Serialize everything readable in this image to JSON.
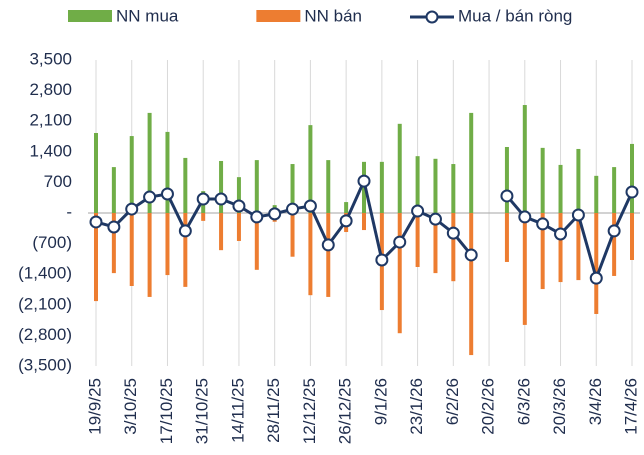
{
  "chart_data": {
    "type": "bar_line",
    "categories": [
      "19/9/25",
      null,
      "3/10/25",
      null,
      "17/10/25",
      null,
      "31/10/25",
      null,
      "14/11/25",
      null,
      "28/11/25",
      null,
      "12/12/25",
      null,
      "26/12/25",
      null,
      "9/1/26",
      null,
      "23/1/26",
      null,
      "6/2/26",
      null,
      "20/2/26",
      null,
      "6/3/26",
      null,
      "20/3/26",
      null,
      "3/4/26",
      null,
      "17/4/26"
    ],
    "series": [
      {
        "name": "NN mua",
        "type": "bar",
        "color": "#70ad47",
        "values": [
          1830,
          1050,
          1760,
          2290,
          1855,
          1260,
          500,
          1190,
          820,
          1210,
          180,
          1120,
          2010,
          1210,
          250,
          1170,
          1170,
          2040,
          1300,
          1240,
          1120,
          2290,
          null,
          1510,
          2470,
          1490,
          1100,
          1465,
          850,
          1050,
          1580
        ]
      },
      {
        "name": "NN bán",
        "type": "bar",
        "color": "#ed7d31",
        "values": [
          -2015,
          -1375,
          -1670,
          -1920,
          -1420,
          -1690,
          -180,
          -850,
          -640,
          -1300,
          -200,
          -1000,
          -1880,
          -1920,
          -435,
          -390,
          -2220,
          -2750,
          -1235,
          -1375,
          -1560,
          -3250,
          null,
          -1120,
          -2560,
          -1740,
          -1580,
          -1535,
          -2310,
          -1440,
          -1075
        ]
      },
      {
        "name": "Mua / bán ròng",
        "type": "line",
        "color": "#1f3864",
        "values": [
          -205,
          -320,
          90,
          365,
          435,
          -410,
          320,
          320,
          160,
          -90,
          -20,
          90,
          160,
          -730,
          -180,
          730,
          -1075,
          -665,
          45,
          -140,
          -460,
          -960,
          null,
          390,
          -90,
          -250,
          -480,
          -45,
          -1490,
          -410,
          480
        ]
      }
    ],
    "ylim": [
      -3500,
      3500
    ],
    "yticks": [
      {
        "value": 3500,
        "label": "3,500"
      },
      {
        "value": 2800,
        "label": "2,800"
      },
      {
        "value": 2100,
        "label": "2,100"
      },
      {
        "value": 1400,
        "label": "1,400"
      },
      700,
      {
        "value": 0,
        "label": "-"
      },
      {
        "value": -700,
        "label": "(700)"
      },
      {
        "value": -1400,
        "label": "(1,400)"
      },
      {
        "value": -2100,
        "label": "(2,100)"
      },
      {
        "value": -2800,
        "label": "(2,800)"
      },
      {
        "value": -3500,
        "label": "(3,500)"
      }
    ],
    "legend": "top"
  }
}
